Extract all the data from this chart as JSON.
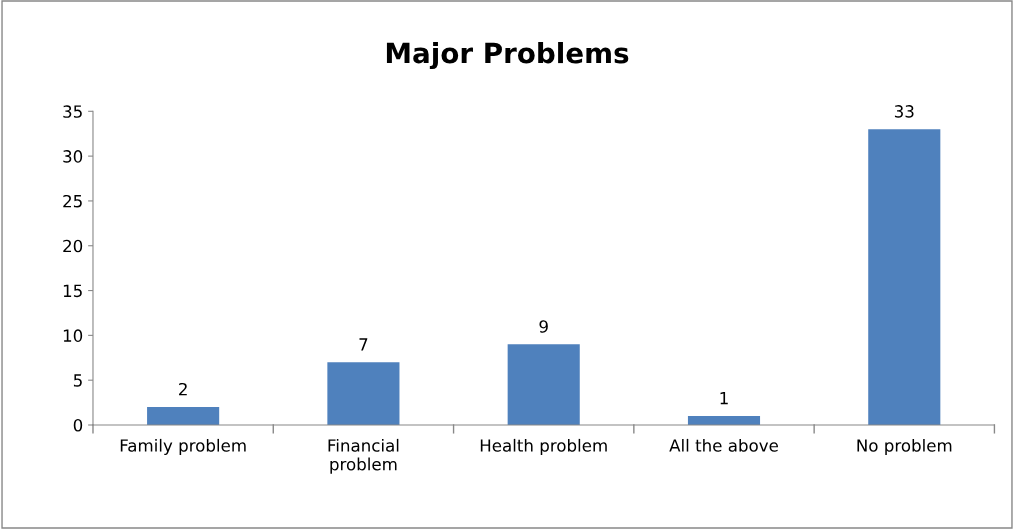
{
  "chart_data": {
    "type": "bar",
    "title": "Major Problems",
    "categories": [
      "Family problem",
      "Financial\nproblem",
      "Health problem",
      "All the above",
      "No problem"
    ],
    "values": [
      2,
      7,
      9,
      1,
      33
    ],
    "color": "#4f81bd",
    "ylim": [
      0,
      35
    ],
    "yticks": [
      0,
      5,
      10,
      15,
      20,
      25,
      30,
      35
    ],
    "grid": false,
    "data_labels": true
  }
}
